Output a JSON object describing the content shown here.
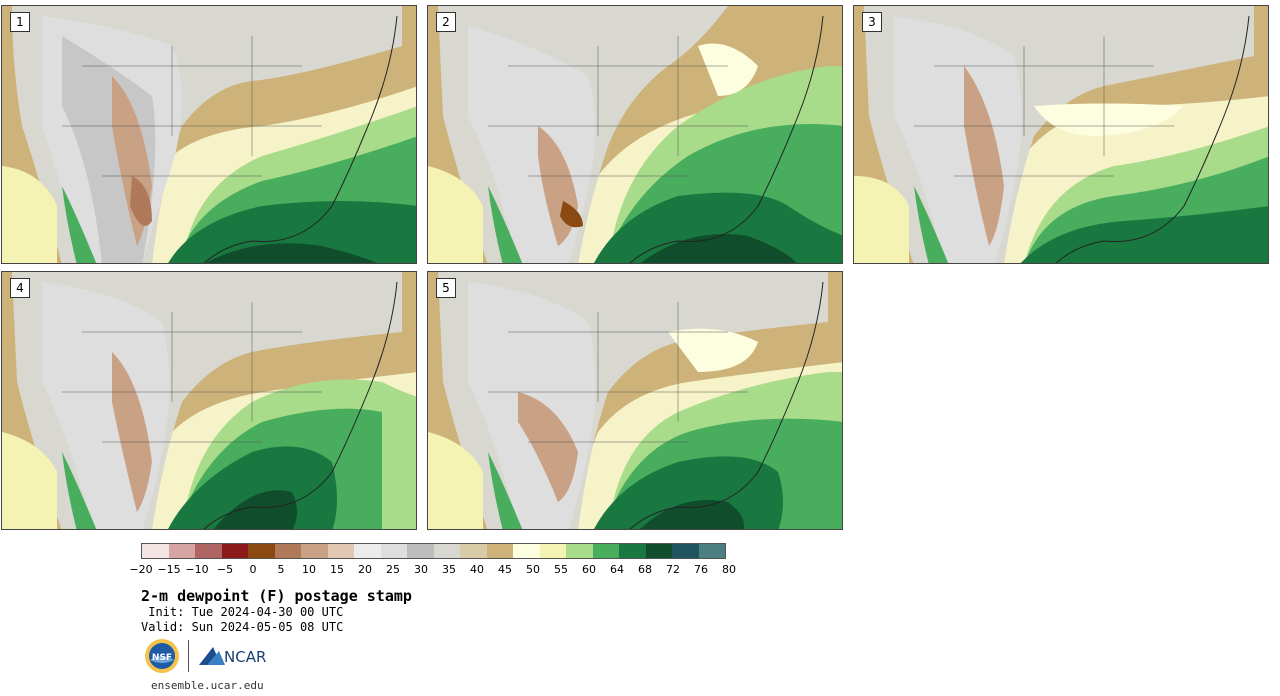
{
  "panels": [
    {
      "label": "1"
    },
    {
      "label": "2"
    },
    {
      "label": "3"
    },
    {
      "label": "4"
    },
    {
      "label": "5"
    }
  ],
  "colorbar": {
    "colors": [
      "#f2e4e2",
      "#d6a4a2",
      "#b06565",
      "#8c1a1a",
      "#8a4a12",
      "#b07a5a",
      "#c9a184",
      "#e2c7b3",
      "#ececec",
      "#dedede",
      "#bdbdbd",
      "#d8d8d0",
      "#d8cca6",
      "#cdb37a",
      "#fdfde0",
      "#f5f3b4",
      "#a8dc8a",
      "#49ad5e",
      "#197840",
      "#0f4d2c",
      "#1f5561",
      "#4c7f82"
    ],
    "ticks": [
      "−20",
      "−15",
      "−10",
      "−5",
      "0",
      "5",
      "10",
      "15",
      "20",
      "25",
      "30",
      "35",
      "40",
      "45",
      "50",
      "55",
      "60",
      "64",
      "68",
      "72",
      "76",
      "80"
    ]
  },
  "title": "2-m dewpoint (F) postage stamp",
  "init": " Init: Tue 2024-04-30 00 UTC",
  "valid": "Valid: Sun 2024-05-05 08 UTC",
  "logos": {
    "nsf": "NSF",
    "ncar": "NCAR"
  },
  "footer_url": "ensemble.ucar.edu"
}
